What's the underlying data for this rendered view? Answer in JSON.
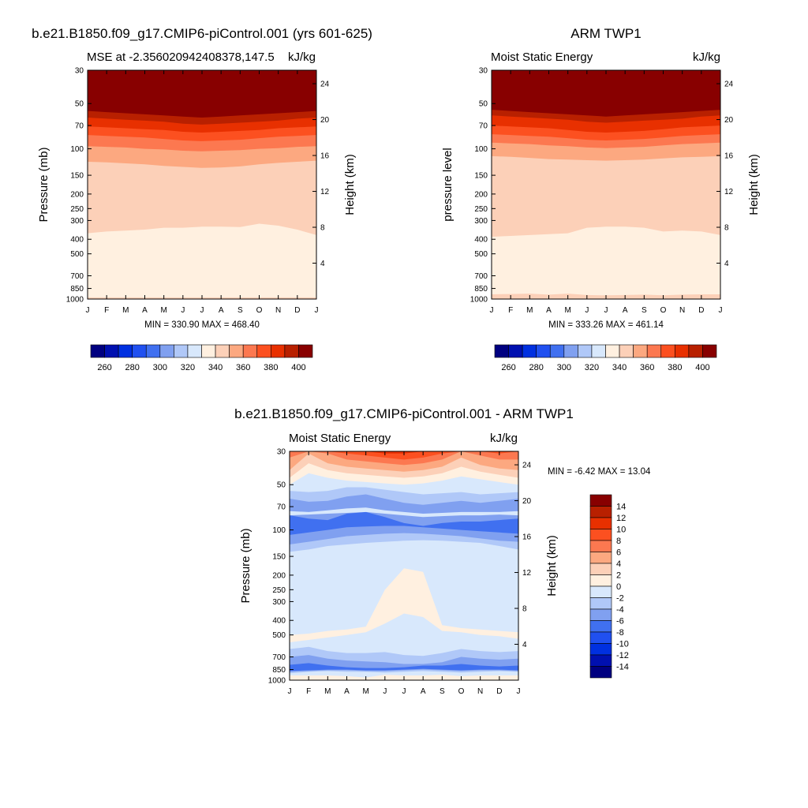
{
  "colors": {
    "mse": [
      "#000080",
      "#0010b0",
      "#0030e0",
      "#2050f0",
      "#4070f0",
      "#80a0f0",
      "#b0c8f8",
      "#d8e8fc",
      "#fff0e0",
      "#fcd0b8",
      "#fca880",
      "#fc7850",
      "#fc5020",
      "#e83000",
      "#b82000",
      "#880000"
    ],
    "diff": [
      "#000080",
      "#0010b0",
      "#0030e0",
      "#2050f0",
      "#4070f0",
      "#80a0f0",
      "#b0c8f8",
      "#d8e8fc",
      "#fff0e0",
      "#fcd0b8",
      "#fca880",
      "#fc7850",
      "#fc5020",
      "#e83000",
      "#b82000",
      "#880000"
    ]
  },
  "chart_data": [
    {
      "type": "heatmap",
      "title": "b.e21.B1850.f09_g17.CMIP6-piControl.001 (yrs 601-625)",
      "left_subtitle": "MSE at -2.356020942408378,147.5",
      "right_subtitle": "kJ/kg",
      "ylabel": "Pressure (mb)",
      "ylabel_right": "Height (km)",
      "months": [
        "J",
        "F",
        "M",
        "A",
        "M",
        "J",
        "J",
        "A",
        "S",
        "O",
        "N",
        "D",
        "J"
      ],
      "pressure_ticks": [
        "30",
        "50",
        "70",
        "100",
        "150",
        "200",
        "250",
        "300",
        "400",
        "500",
        "700",
        "850",
        "1000"
      ],
      "pressure_values": [
        30,
        50,
        70,
        100,
        150,
        200,
        250,
        300,
        400,
        500,
        700,
        850,
        1000
      ],
      "height_ticks": [
        "24",
        "20",
        "16",
        "12",
        "8",
        "4"
      ],
      "height_values": [
        24,
        20,
        16,
        12,
        8,
        4
      ],
      "stats": "MIN = 330.90 MAX = 468.40",
      "colorbar_levels": [
        260,
        270,
        280,
        290,
        300,
        310,
        320,
        330,
        340,
        350,
        360,
        370,
        380,
        390,
        400
      ],
      "colorbar_labels": [
        "260",
        "280",
        "300",
        "320",
        "340",
        "360",
        "380",
        "400"
      ],
      "boundaries_mb": {
        "340": [
          365,
          355,
          350,
          345,
          335,
          335,
          330,
          330,
          332,
          315,
          325,
          345,
          375
        ],
        "360": [
          122,
          123,
          125,
          127,
          130,
          132,
          134,
          133,
          131,
          127,
          124,
          122,
          120
        ],
        "370": [
          96,
          97,
          98,
          100,
          101,
          103,
          104,
          103,
          102,
          100,
          99,
          97,
          96
        ],
        "380": [
          81,
          82,
          83,
          84,
          86,
          88,
          89,
          88,
          87,
          85,
          83,
          82,
          81
        ],
        "390": [
          71,
          72,
          73,
          74,
          75,
          77,
          78,
          77,
          76,
          75,
          73,
          72,
          71
        ],
        "400": [
          62,
          63,
          64,
          65,
          66,
          68,
          69,
          68,
          67,
          66,
          65,
          63,
          62
        ],
        "410": [
          56,
          57,
          58,
          59,
          60,
          61,
          62,
          61,
          60,
          59,
          58,
          57,
          56
        ]
      }
    },
    {
      "type": "heatmap",
      "title": "ARM TWP1",
      "left_subtitle": "Moist Static Energy",
      "right_subtitle": "kJ/kg",
      "ylabel": "pressure level",
      "ylabel_right": "Height (km)",
      "months": [
        "J",
        "F",
        "M",
        "A",
        "M",
        "J",
        "J",
        "A",
        "S",
        "O",
        "N",
        "D",
        "J"
      ],
      "pressure_ticks": [
        "30",
        "50",
        "70",
        "100",
        "150",
        "200",
        "250",
        "300",
        "400",
        "500",
        "700",
        "850",
        "1000"
      ],
      "pressure_values": [
        30,
        50,
        70,
        100,
        150,
        200,
        250,
        300,
        400,
        500,
        700,
        850,
        1000
      ],
      "height_ticks": [
        "24",
        "20",
        "16",
        "12",
        "8",
        "4"
      ],
      "height_values": [
        24,
        20,
        16,
        12,
        8,
        4
      ],
      "stats": "MIN = 333.26 MAX = 461.14",
      "colorbar_levels": [
        260,
        270,
        280,
        290,
        300,
        310,
        320,
        330,
        340,
        350,
        360,
        370,
        380,
        390,
        400
      ],
      "colorbar_labels": [
        "260",
        "280",
        "300",
        "320",
        "340",
        "360",
        "380",
        "400"
      ],
      "boundaries_mb": {
        "340": [
          385,
          380,
          375,
          370,
          365,
          335,
          330,
          330,
          335,
          355,
          350,
          355,
          375
        ],
        "360": [
          112,
          113,
          115,
          117,
          118,
          119,
          120,
          119,
          118,
          116,
          114,
          113,
          112
        ],
        "370": [
          91,
          92,
          93,
          95,
          96,
          98,
          99,
          98,
          97,
          95,
          93,
          92,
          91
        ],
        "380": [
          80,
          81,
          82,
          83,
          85,
          87,
          88,
          87,
          86,
          84,
          82,
          81,
          80
        ],
        "390": [
          70,
          71,
          72,
          73,
          75,
          77,
          78,
          77,
          76,
          74,
          72,
          71,
          70
        ],
        "400": [
          60,
          61,
          62,
          63,
          64,
          66,
          67,
          66,
          65,
          64,
          63,
          61,
          60
        ],
        "410": [
          55,
          56,
          57,
          58,
          59,
          60,
          61,
          60,
          59,
          58,
          57,
          56,
          55
        ]
      }
    },
    {
      "type": "heatmap",
      "title": "b.e21.B1850.f09_g17.CMIP6-piControl.001 - ARM TWP1",
      "left_subtitle": "Moist Static Energy",
      "right_subtitle": "kJ/kg",
      "ylabel": "Pressure (mb)",
      "ylabel_right": "Height (km)",
      "months": [
        "J",
        "F",
        "M",
        "A",
        "M",
        "J",
        "J",
        "A",
        "S",
        "O",
        "N",
        "D",
        "J"
      ],
      "pressure_ticks": [
        "30",
        "50",
        "70",
        "100",
        "150",
        "200",
        "250",
        "300",
        "400",
        "500",
        "700",
        "850",
        "1000"
      ],
      "pressure_values": [
        30,
        50,
        70,
        100,
        150,
        200,
        250,
        300,
        400,
        500,
        700,
        850,
        1000
      ],
      "height_ticks": [
        "24",
        "20",
        "16",
        "12",
        "8",
        "4"
      ],
      "height_values": [
        24,
        20,
        16,
        12,
        8,
        4
      ],
      "stats": "MIN =  -6.42 MAX =  13.04",
      "colorbar_levels": [
        -14,
        -12,
        -10,
        -8,
        -6,
        -4,
        -2,
        0,
        2,
        4,
        6,
        8,
        10,
        12,
        14
      ],
      "colorbar_labels": [
        "14",
        "12",
        "10",
        "8",
        "6",
        "4",
        "2",
        "0",
        "-2",
        "-4",
        "-6",
        "-8",
        "-10",
        "-12",
        "-14"
      ]
    }
  ]
}
